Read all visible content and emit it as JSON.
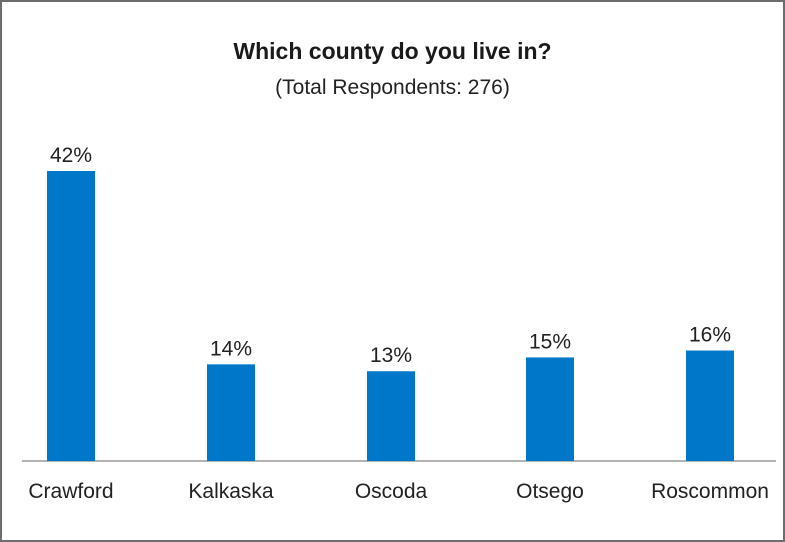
{
  "chart_data": {
    "type": "bar",
    "title": "Which county do you live in?",
    "subtitle": "(Total Respondents: 276)",
    "categories": [
      "Crawford",
      "Kalkaska",
      "Oscoda",
      "Otsego",
      "Roscommon"
    ],
    "values": [
      42,
      14,
      13,
      15,
      16
    ],
    "value_labels": [
      "42%",
      "14%",
      "13%",
      "15%",
      "16%"
    ],
    "unit": "%",
    "ylim": [
      0,
      42
    ],
    "grid": false,
    "bar_color": "#0077c8",
    "axis_color": "#9a9a9a"
  }
}
